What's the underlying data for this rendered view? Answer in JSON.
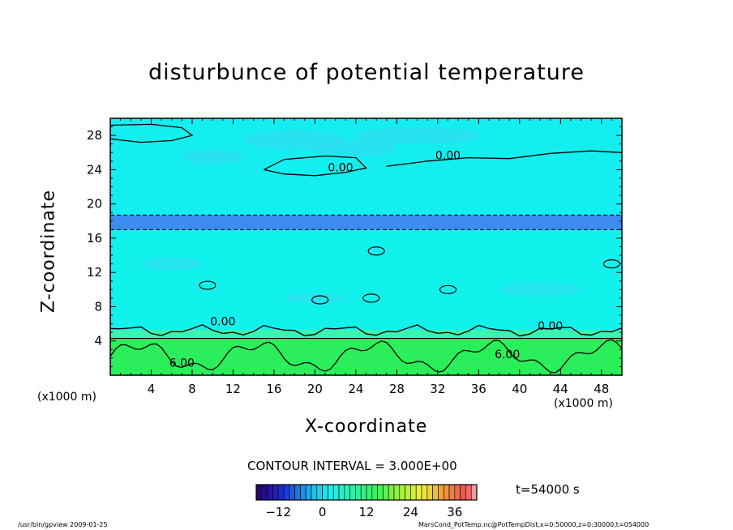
{
  "chart_data": {
    "type": "heatmap",
    "title": "disturbunce of potential temperature",
    "xlabel": "X-coordinate",
    "ylabel": "Z-coordinate",
    "x_unit_left": "(x1000 m)",
    "x_unit_right": "(x1000 m)",
    "xlim": [
      0,
      50
    ],
    "ylim": [
      0,
      30
    ],
    "x_ticks": [
      4,
      8,
      12,
      16,
      20,
      24,
      28,
      32,
      36,
      40,
      44,
      48
    ],
    "y_ticks": [
      4,
      8,
      12,
      16,
      20,
      24,
      28
    ],
    "contour_interval_text": "CONTOUR INTERVAL = 3.000E+00",
    "time_label": "t=54000 s",
    "colorbar": {
      "min": -18,
      "max": 42,
      "tick_values": [
        -12,
        0,
        12,
        24,
        36
      ],
      "tick_labels": [
        "−12",
        "0",
        "12",
        "24",
        "36"
      ]
    },
    "contour_labels": [
      {
        "text": "0.00",
        "x": 22.5,
        "z": 23.8
      },
      {
        "text": "0.00",
        "x": 33.0,
        "z": 25.2
      },
      {
        "text": "0.00",
        "x": 11.0,
        "z": 5.8
      },
      {
        "text": "0.00",
        "x": 43.0,
        "z": 5.3
      },
      {
        "text": "6.00",
        "x": 7.0,
        "z": 1.0
      },
      {
        "text": "6.00",
        "x": 38.8,
        "z": 2.0
      }
    ],
    "field_layers": [
      {
        "z_bottom": 0.0,
        "z_top": 4.3,
        "value": 7.0,
        "color": "#2aef5a"
      },
      {
        "z_bottom": 4.3,
        "z_top": 5.3,
        "value": 3.5,
        "color": "#39f5b0"
      },
      {
        "z_bottom": 5.3,
        "z_top": 17.0,
        "value": 0.5,
        "color": "#12f2ec"
      },
      {
        "z_bottom": 17.0,
        "z_top": 18.7,
        "value": -4.0,
        "color": "#3d8cf0"
      },
      {
        "z_bottom": 18.7,
        "z_top": 30.0,
        "value": 0.5,
        "color": "#14eeee"
      }
    ],
    "grid": false
  },
  "footer": {
    "left": "/usr/bin/gpview   2009-01-25",
    "right": "MarsCond_PotTemp.nc@PotTempDist,x=0:50000,z=0:30000,t=054000"
  },
  "colors": {
    "background": "#ffffff",
    "axis": "#000000"
  }
}
